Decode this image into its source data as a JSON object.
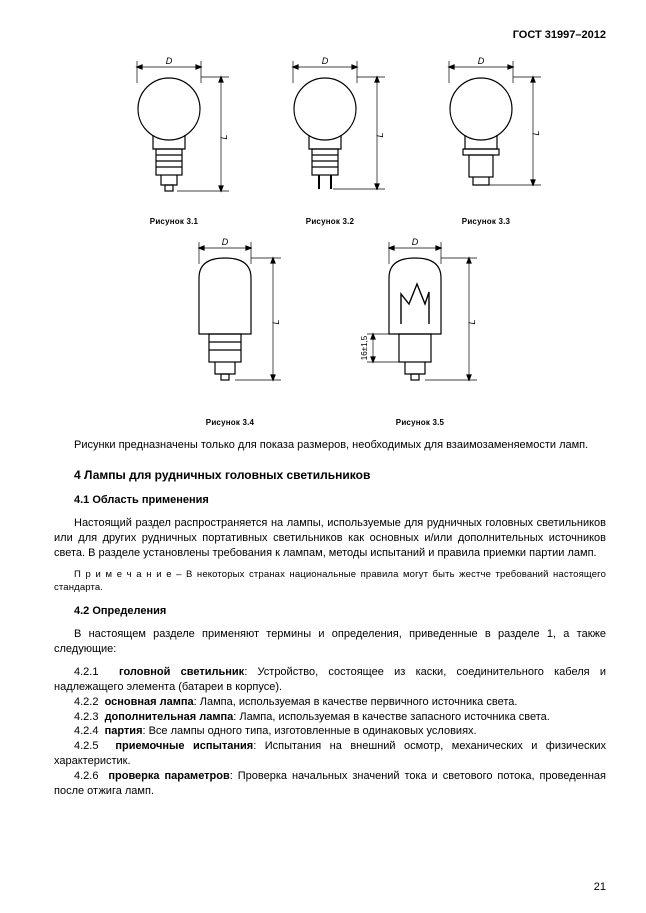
{
  "header": "ГОСТ 31997–2012",
  "figures": {
    "row1": [
      {
        "caption": "Рисунок 3.1",
        "type": "round",
        "filament": false,
        "D": "D",
        "L": "L"
      },
      {
        "caption": "Рисунок 3.2",
        "type": "round",
        "filament": false,
        "D": "D",
        "L": "L"
      },
      {
        "caption": "Рисунок 3.3",
        "type": "round",
        "filament": false,
        "D": "D",
        "L": "L"
      }
    ],
    "row2": [
      {
        "caption": "Рисунок 3.4",
        "type": "tube",
        "filament": false,
        "D": "D",
        "L": "L"
      },
      {
        "caption": "Рисунок 3.5",
        "type": "tube",
        "filament": true,
        "D": "D",
        "L": "L",
        "side": "16±1,5"
      }
    ]
  },
  "intro": "Рисунки предназначены только для показа размеров, необходимых для взаимозаменяемости ламп.",
  "section_title": "4 Лампы для рудничных головных светильников",
  "s41_title": "4.1 Область применения",
  "s41_body": "Настоящий раздел распространяется на лампы, используемые для рудничных головных светильников или для других рудничных портативных светильников как основных и/или дополнительных источников света. В разделе установлены требования к лампам, методы испытаний и правила приемки партии ламп.",
  "note_label": "П р и м е ч а н и е",
  "note_body": " – В некоторых странах национальные правила могут быть жестче требований настоящего стандарта.",
  "s42_title": "4.2 Определения",
  "s42_intro": "В настоящем разделе применяют термины и определения, приведенные в разделе 1, а также следующие:",
  "defs": [
    {
      "n": "4.2.1",
      "term": "головной светильник",
      "text": ": Устройство, состоящее из каски, соединительного кабеля и надлежащего элемента (батареи в корпусе)."
    },
    {
      "n": "4.2.2",
      "term": "основная лампа",
      "text": ": Лампа, используемая в качестве первичного источника света."
    },
    {
      "n": "4.2.3",
      "term": "дополнительная лампа",
      "text": ": Лампа, используемая в качестве запасного источника света."
    },
    {
      "n": "4.2.4",
      "term": "партия",
      "text": ": Все лампы одного типа, изготовленные в одинаковых условиях."
    },
    {
      "n": "4.2.5",
      "term": "приемочные испытания",
      "text": ": Испытания на внешний осмотр, механических и физических характеристик."
    },
    {
      "n": "4.2.6",
      "term": "проверка параметров",
      "text": ": Проверка начальных значений тока и светового потока, проведенная после отжига ламп."
    }
  ],
  "page_number": "21",
  "style": {
    "stroke": "#000000",
    "stroke_width": 1.2,
    "thin_stroke": 0.7,
    "font": "Arial",
    "bg": "#ffffff"
  }
}
